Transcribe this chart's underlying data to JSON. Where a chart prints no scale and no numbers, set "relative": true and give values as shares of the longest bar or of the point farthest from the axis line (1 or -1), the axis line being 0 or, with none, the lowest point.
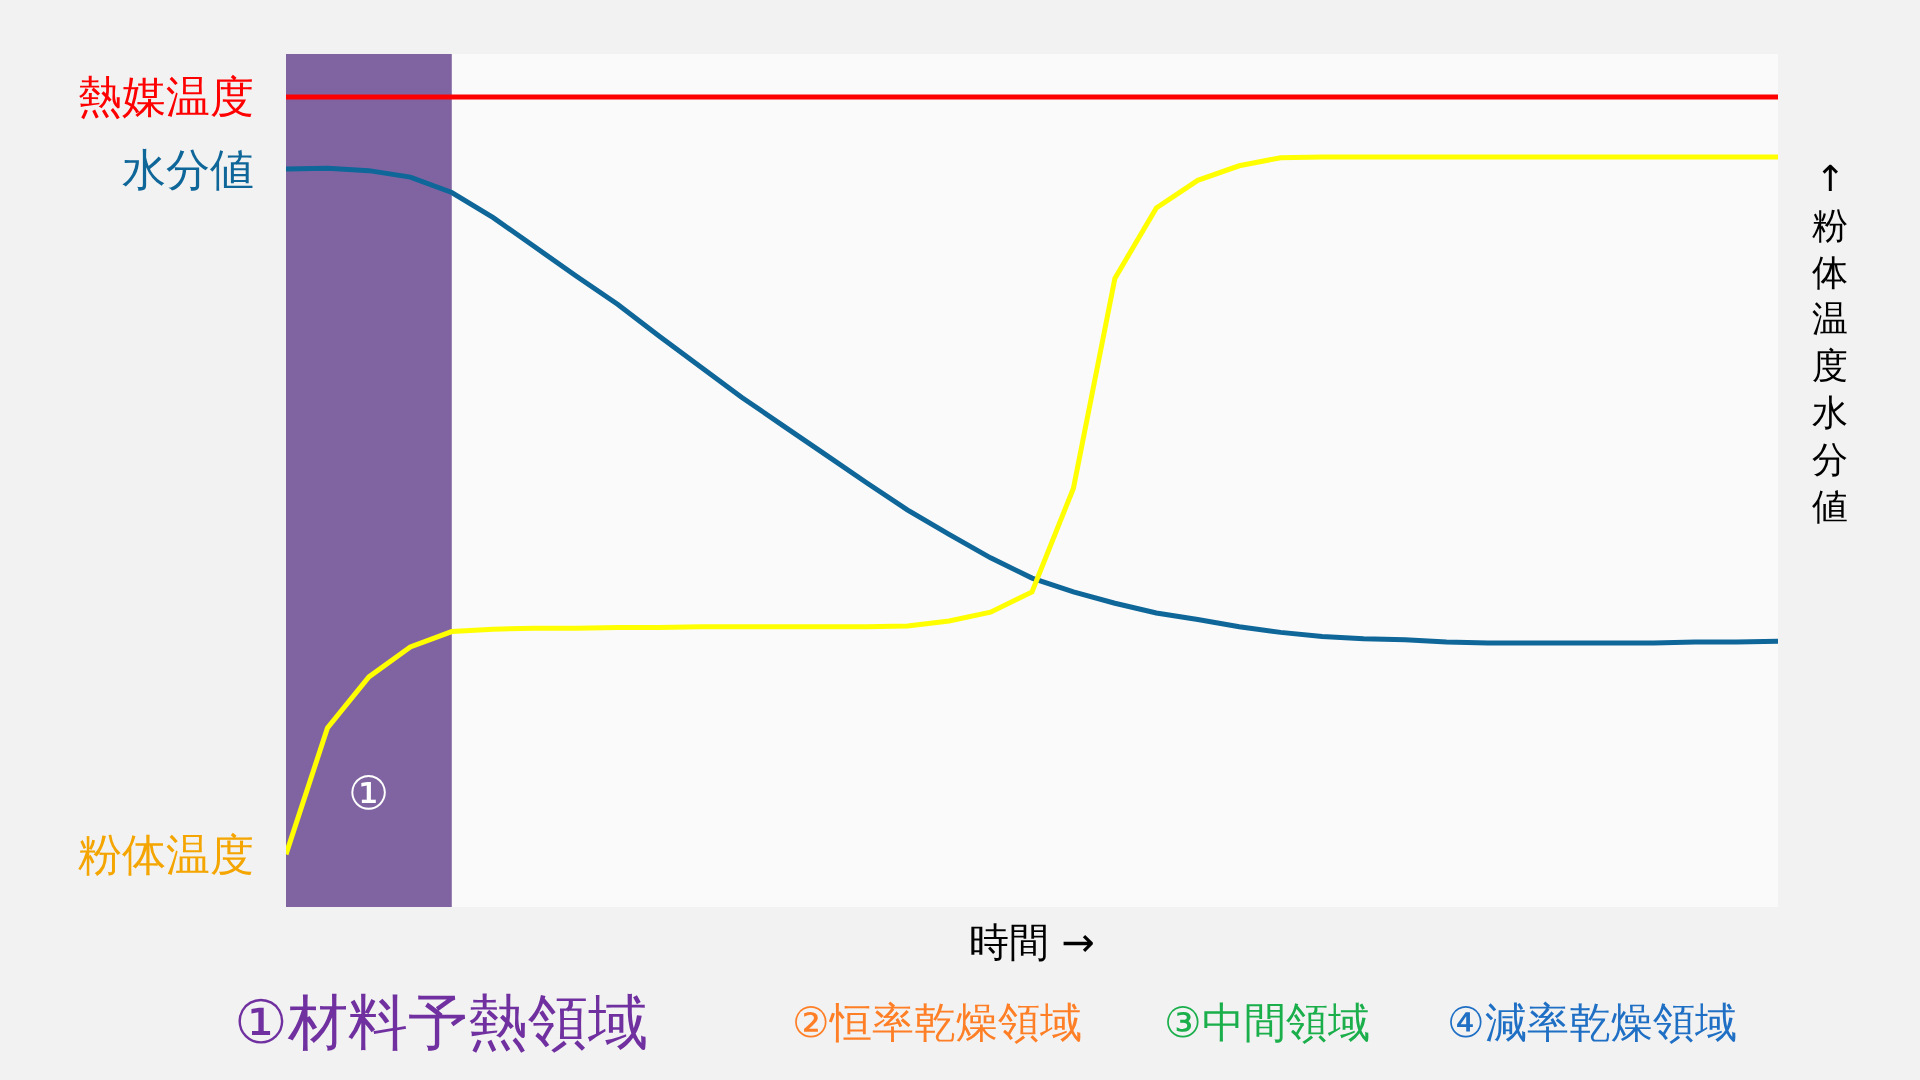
{
  "chart_data": {
    "type": "line",
    "relative": true,
    "xlabel": "時間 →",
    "y2label": "↑粉体温度水分値",
    "legend": false,
    "marker": "none",
    "line_style": "solid",
    "categories": [
      null,
      null,
      null,
      null,
      null,
      null,
      null,
      null,
      null,
      null,
      null,
      null,
      null,
      null,
      null,
      null,
      null,
      null,
      null,
      null,
      null,
      null,
      null,
      null,
      null,
      null,
      null,
      null,
      null,
      null,
      null,
      null,
      null,
      null,
      null,
      null,
      null
    ],
    "series": [
      {
        "name": "熱媒温度",
        "color": "#ff0000",
        "values": [
          1,
          1,
          1,
          1,
          1,
          1,
          1,
          1,
          1,
          1,
          1,
          1,
          1,
          1,
          1,
          1,
          1,
          1,
          1,
          1,
          1,
          1,
          1,
          1,
          1,
          1,
          1,
          1,
          1,
          1,
          1,
          1,
          1,
          1,
          1,
          1,
          1
        ]
      },
      {
        "name": "水分値",
        "color": "#0e6699",
        "values": [
          0.911,
          0.912,
          0.909,
          0.901,
          0.882,
          0.851,
          0.815,
          0.779,
          0.744,
          0.705,
          0.667,
          0.629,
          0.594,
          0.559,
          0.524,
          0.49,
          0.46,
          0.431,
          0.406,
          0.389,
          0.375,
          0.363,
          0.355,
          0.346,
          0.339,
          0.334,
          0.331,
          0.33,
          0.327,
          0.326,
          0.326,
          0.326,
          0.326,
          0.326,
          0.327,
          0.327,
          0.328
        ]
      },
      {
        "name": "粉体温度",
        "color": "#ffff00",
        "values": [
          0.065,
          0.221,
          0.284,
          0.321,
          0.34,
          0.343,
          0.344,
          0.344,
          0.345,
          0.345,
          0.346,
          0.346,
          0.346,
          0.346,
          0.346,
          0.347,
          0.353,
          0.364,
          0.389,
          0.517,
          0.776,
          0.863,
          0.897,
          0.915,
          0.925,
          0.926,
          0.926,
          0.926,
          0.926,
          0.926,
          0.926,
          0.926,
          0.926,
          0.926,
          0.926,
          0.926,
          0.926
        ]
      }
    ],
    "annotations": [
      "①",
      "①材料予熱領域",
      "②恒率乾燥領域",
      "③中間領域",
      "④減率乾燥領域"
    ]
  }
}
